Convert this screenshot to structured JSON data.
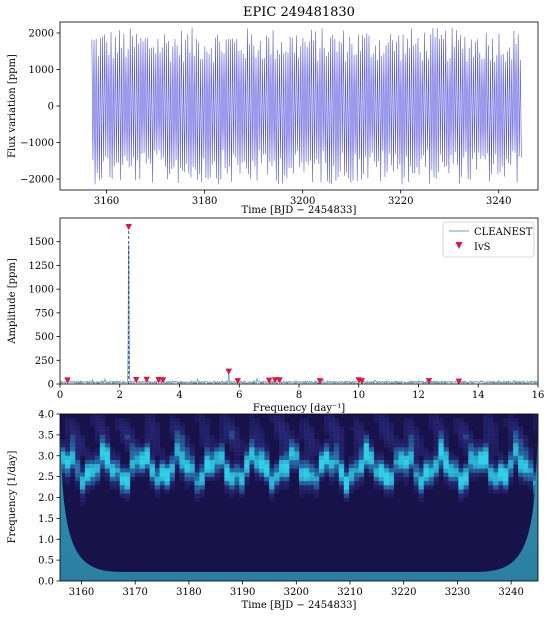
{
  "title": "EPIC 249481830",
  "colors": {
    "lightcurve": "#3b3bd6",
    "cleanest": "#6f9fb8",
    "ivs_marker": "#e8113f",
    "peak_dash": "#1f3f8f",
    "cwt_low": "#17124a",
    "cwt_mid": "#3b3ea0",
    "cwt_high": "#2fd0e8",
    "cwt_coi": "#2a7fa0"
  },
  "chart_data": [
    {
      "type": "line",
      "title": "EPIC 249481830",
      "xlabel": "Time [BJD − 2454833]",
      "ylabel": "Flux variation [ppm]",
      "xlim": [
        3150.5,
        3248
      ],
      "ylim": [
        -2300,
        2300
      ],
      "xticks": [
        3160,
        3180,
        3200,
        3220,
        3240
      ],
      "yticks": [
        -2000,
        -1000,
        0,
        1000,
        2000
      ],
      "time_range": [
        3157,
        3244.5
      ],
      "dominant_frequency": 2.3,
      "amplitude": 1650,
      "amplitude_range": [
        1200,
        2150
      ],
      "grid": false,
      "series": [
        {
          "values_summary": "Dense oscillation at ~2.3 cycles/day with semi-amplitude ~1500–2000 ppm between t=3157 and t=3244.5"
        }
      ]
    },
    {
      "type": "line",
      "xlabel": "Frequency [day⁻¹]",
      "ylabel": "Amplitude [ppm]",
      "xlim": [
        0,
        16
      ],
      "ylim": [
        0,
        1750
      ],
      "xticks": [
        0,
        2,
        4,
        6,
        8,
        10,
        12,
        14,
        16
      ],
      "yticks": [
        0,
        250,
        500,
        750,
        1000,
        1250,
        1500
      ],
      "legend_position": "top-right",
      "grid": false,
      "series": [
        {
          "name": "CLEANEST",
          "peaks": [
            [
              0.3,
              45
            ],
            [
              1.1,
              30
            ],
            [
              1.5,
              35
            ],
            [
              2.3,
              1660
            ],
            [
              2.55,
              60
            ],
            [
              2.9,
              50
            ],
            [
              3.35,
              55
            ],
            [
              4.6,
              45
            ],
            [
              5.65,
              130
            ],
            [
              5.95,
              55
            ],
            [
              6.6,
              40
            ],
            [
              7.3,
              40
            ],
            [
              8.8,
              40
            ],
            [
              10.05,
              40
            ],
            [
              10.55,
              35
            ],
            [
              12.3,
              30
            ],
            [
              13.35,
              25
            ],
            [
              14.1,
              25
            ],
            [
              15.2,
              20
            ]
          ]
        },
        {
          "name": "IvS",
          "points": [
            [
              0.25,
              38
            ],
            [
              2.3,
              1655
            ],
            [
              2.55,
              42
            ],
            [
              2.9,
              45
            ],
            [
              3.3,
              42
            ],
            [
              3.45,
              40
            ],
            [
              5.65,
              130
            ],
            [
              5.95,
              30
            ],
            [
              7.0,
              35
            ],
            [
              7.2,
              40
            ],
            [
              7.35,
              40
            ],
            [
              8.7,
              30
            ],
            [
              10.0,
              40
            ],
            [
              10.1,
              30
            ],
            [
              12.35,
              30
            ],
            [
              13.35,
              25
            ]
          ]
        }
      ]
    },
    {
      "type": "heatmap",
      "xlabel": "Time [BJD − 2454833]",
      "ylabel": "Frequency [1/day]",
      "xlim": [
        3156,
        3245
      ],
      "ylim": [
        0,
        4.0
      ],
      "xticks": [
        3160,
        3170,
        3180,
        3190,
        3200,
        3210,
        3220,
        3230,
        3240
      ],
      "yticks": [
        0.0,
        0.5,
        1.0,
        1.5,
        2.0,
        2.5,
        3.0,
        3.5,
        4.0
      ],
      "ridge_frequency": 2.7,
      "ridge_wobble": 0.25,
      "cone_of_influence": true,
      "grid": false
    }
  ]
}
